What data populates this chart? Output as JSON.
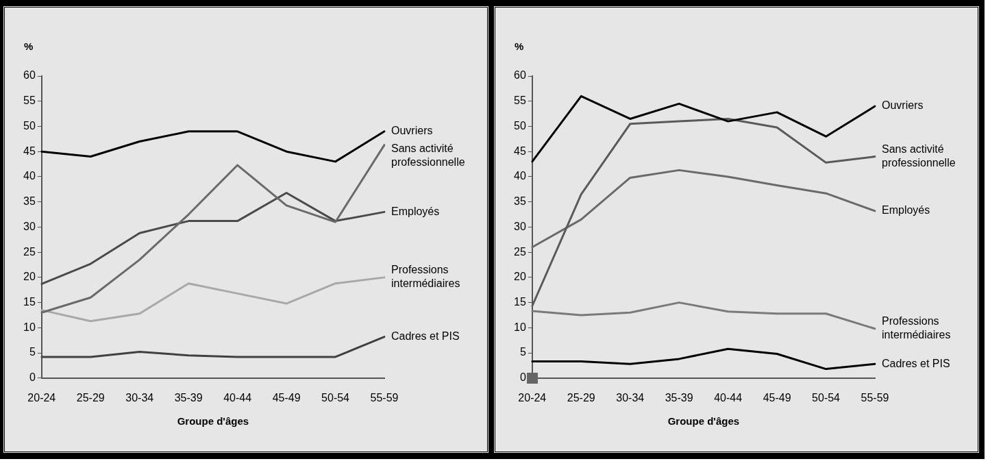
{
  "chart_data": [
    {
      "type": "line",
      "ylabel": "%",
      "xlabel": "Groupe d'âges",
      "categories": [
        "20-24",
        "25-29",
        "30-34",
        "35-39",
        "40-44",
        "45-49",
        "50-54",
        "55-59"
      ],
      "ylim": [
        0,
        60
      ],
      "yticks": [
        0,
        5,
        10,
        15,
        20,
        25,
        30,
        35,
        40,
        45,
        50,
        55,
        60
      ],
      "grid": false,
      "legend": false,
      "marker": "none",
      "line_style": "solid",
      "series": [
        {
          "name": "Ouvriers",
          "color": "#000000",
          "values": [
            45,
            44,
            47,
            49,
            49,
            45,
            43,
            49
          ]
        },
        {
          "name": "Sans activité professionnelle",
          "color": "#6a6a6a",
          "values": [
            13,
            16,
            23.5,
            32.5,
            42.3,
            34.3,
            31,
            46.3
          ]
        },
        {
          "name": "Employés",
          "color": "#4a4a4a",
          "values": [
            18.7,
            22.7,
            28.8,
            31.2,
            31.2,
            36.8,
            31.2,
            33
          ]
        },
        {
          "name": "Professions intermédiaires",
          "color": "#a8a8a8",
          "values": [
            13.5,
            11.3,
            12.8,
            18.8,
            16.8,
            14.8,
            18.8,
            20
          ]
        },
        {
          "name": "Cadres et PIS",
          "color": "#404040",
          "values": [
            4.2,
            4.2,
            5.2,
            4.5,
            4.2,
            4.2,
            4.2,
            8.2
          ]
        }
      ]
    },
    {
      "type": "line",
      "ylabel": "%",
      "xlabel": "Groupe d'âges",
      "categories": [
        "20-24",
        "25-29",
        "30-34",
        "35-39",
        "40-44",
        "45-49",
        "50-54",
        "55-59"
      ],
      "ylim": [
        0,
        60
      ],
      "yticks": [
        0,
        5,
        10,
        15,
        20,
        25,
        30,
        35,
        40,
        45,
        50,
        55,
        60
      ],
      "grid": false,
      "legend": false,
      "marker": "none",
      "line_style": "solid",
      "series": [
        {
          "name": "Ouvriers",
          "color": "#000000",
          "values": [
            43,
            56,
            51.5,
            54.5,
            51,
            52.8,
            48,
            54
          ]
        },
        {
          "name": "Sans activité professionnelle",
          "color": "#5a5a5a",
          "values": [
            14.3,
            36.5,
            50.5,
            51,
            51.5,
            49.8,
            42.8,
            44
          ]
        },
        {
          "name": "Employés",
          "color": "#6a6a6a",
          "values": [
            26,
            31.5,
            39.8,
            41.3,
            40,
            38.3,
            36.7,
            33.2
          ]
        },
        {
          "name": "Professions intermédiaires",
          "color": "#7a7a7a",
          "values": [
            13.3,
            12.5,
            13,
            15,
            13.2,
            12.8,
            12.8,
            9.8
          ]
        },
        {
          "name": "Cadres et PIS",
          "color": "#000000",
          "values": [
            3.3,
            3.3,
            2.8,
            3.8,
            5.8,
            4.8,
            1.8,
            2.8
          ]
        }
      ]
    }
  ]
}
